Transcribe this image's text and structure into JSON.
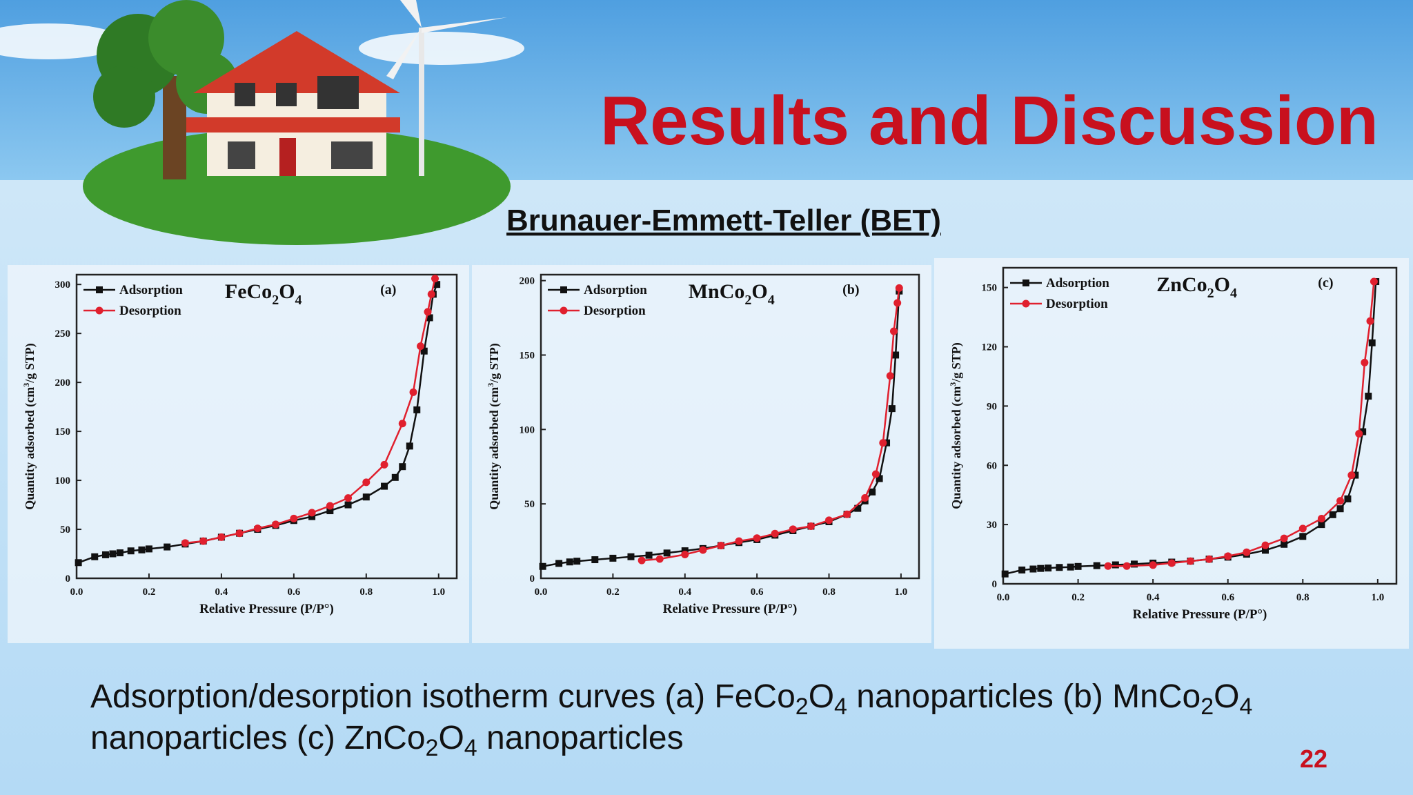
{
  "slide": {
    "title": "Results and Discussion",
    "subtitle": "Brunauer-Emmett-Teller (BET)",
    "page_number": "22"
  },
  "caption": [
    [
      [
        "Adsorption/desorption isotherm curves (a) FeCo",
        "2"
      ],
      [
        "O",
        "4"
      ],
      [
        " nanoparticles (b) MnCo",
        "2"
      ],
      [
        "O",
        "4"
      ]
    ],
    [
      [
        "nanoparticles (c) ZnCo",
        "2"
      ],
      [
        "O",
        "4"
      ],
      [
        " nanoparticles"
      ]
    ]
  ],
  "chart_data": [
    {
      "type": "line",
      "formula": [
        [
          "FeCo",
          "2"
        ],
        [
          "O",
          "4"
        ]
      ],
      "panel": "(a)",
      "x_label": "Relative Pressure (P/P°)",
      "y_label": [
        "Quantity adsorbed (cm",
        "3",
        "/g STP)"
      ],
      "xlim": [
        0,
        1.05
      ],
      "ylim": [
        0,
        310
      ],
      "xticks": [
        {
          "value": 0,
          "label": "0.0"
        },
        {
          "value": 0.2,
          "label": "0.2"
        },
        {
          "value": 0.4,
          "label": "0.4"
        },
        {
          "value": 0.6,
          "label": "0.6"
        },
        {
          "value": 0.8,
          "label": "0.8"
        },
        {
          "value": 1,
          "label": "1.0"
        }
      ],
      "yticks": [
        0,
        50,
        100,
        150,
        200,
        250,
        300
      ],
      "series": [
        {
          "name": "Adsorption",
          "color": "#111111",
          "marker": "square",
          "x": [
            0.005,
            0.05,
            0.08,
            0.1,
            0.12,
            0.15,
            0.18,
            0.2,
            0.25,
            0.3,
            0.35,
            0.4,
            0.45,
            0.5,
            0.55,
            0.6,
            0.65,
            0.7,
            0.75,
            0.8,
            0.85,
            0.88,
            0.9,
            0.92,
            0.94,
            0.96,
            0.975,
            0.985,
            0.995
          ],
          "values": [
            16,
            22,
            24,
            25,
            26,
            28,
            29,
            30,
            32,
            35,
            38,
            42,
            46,
            50,
            54,
            59,
            63,
            69,
            75,
            83,
            94,
            103,
            114,
            135,
            172,
            232,
            266,
            290,
            300
          ]
        },
        {
          "name": "Desorption",
          "color": "#e0202e",
          "marker": "circle",
          "x": [
            0.3,
            0.35,
            0.4,
            0.45,
            0.5,
            0.55,
            0.6,
            0.65,
            0.7,
            0.75,
            0.8,
            0.85,
            0.9,
            0.93,
            0.95,
            0.97,
            0.98,
            0.99
          ],
          "values": [
            36,
            38,
            42,
            46,
            51,
            55,
            61,
            67,
            74,
            82,
            98,
            116,
            158,
            190,
            237,
            272,
            290,
            306
          ]
        }
      ]
    },
    {
      "type": "line",
      "formula": [
        [
          "MnCo",
          "2"
        ],
        [
          "O",
          "4"
        ]
      ],
      "panel": "(b)",
      "x_label": "Relative Pressure (P/P°)",
      "y_label": [
        "Quantity adsorbed (cm",
        "3",
        "/g STP)"
      ],
      "xlim": [
        0,
        1.05
      ],
      "ylim": [
        0,
        204
      ],
      "xticks": [
        {
          "value": 0,
          "label": "0.0"
        },
        {
          "value": 0.2,
          "label": "0.2"
        },
        {
          "value": 0.4,
          "label": "0.4"
        },
        {
          "value": 0.6,
          "label": "0.6"
        },
        {
          "value": 0.8,
          "label": "0.8"
        },
        {
          "value": 1,
          "label": "1.0"
        }
      ],
      "yticks": [
        0,
        50,
        100,
        150,
        200
      ],
      "series": [
        {
          "name": "Adsorption",
          "color": "#111111",
          "marker": "square",
          "x": [
            0.005,
            0.05,
            0.08,
            0.1,
            0.15,
            0.2,
            0.25,
            0.3,
            0.35,
            0.4,
            0.45,
            0.5,
            0.55,
            0.6,
            0.65,
            0.7,
            0.75,
            0.8,
            0.85,
            0.88,
            0.9,
            0.92,
            0.94,
            0.96,
            0.975,
            0.985,
            0.995
          ],
          "values": [
            8,
            10,
            11,
            11.5,
            12.5,
            13.5,
            14.5,
            15.5,
            17,
            18.5,
            20,
            22,
            24,
            26,
            29,
            32,
            35,
            38,
            43,
            47,
            52,
            58,
            67,
            91,
            114,
            150,
            193
          ]
        },
        {
          "name": "Desorption",
          "color": "#e0202e",
          "marker": "circle",
          "x": [
            0.28,
            0.33,
            0.4,
            0.45,
            0.5,
            0.55,
            0.6,
            0.65,
            0.7,
            0.75,
            0.8,
            0.85,
            0.9,
            0.93,
            0.95,
            0.97,
            0.98,
            0.99,
            0.995
          ],
          "values": [
            12,
            13,
            16,
            19,
            22,
            25,
            27,
            30,
            33,
            35,
            39,
            43,
            54,
            70,
            91,
            136,
            166,
            185,
            195
          ]
        }
      ]
    },
    {
      "type": "line",
      "formula": [
        [
          "ZnCo",
          "2"
        ],
        [
          "O",
          "4"
        ]
      ],
      "panel": "(c)",
      "x_label": "Relative Pressure (P/P°)",
      "y_label": [
        "Quantity adsorbed (cm",
        "3",
        "/g STP)"
      ],
      "xlim": [
        0,
        1.05
      ],
      "ylim": [
        0,
        160
      ],
      "xticks": [
        {
          "value": 0,
          "label": "0.0"
        },
        {
          "value": 0.2,
          "label": "0.2"
        },
        {
          "value": 0.4,
          "label": "0.4"
        },
        {
          "value": 0.6,
          "label": "0.6"
        },
        {
          "value": 0.8,
          "label": "0.8"
        },
        {
          "value": 1,
          "label": "1.0"
        }
      ],
      "yticks": [
        0,
        30,
        60,
        90,
        120,
        150
      ],
      "series": [
        {
          "name": "Adsorption",
          "color": "#111111",
          "marker": "square",
          "x": [
            0.005,
            0.05,
            0.08,
            0.1,
            0.12,
            0.15,
            0.18,
            0.2,
            0.25,
            0.3,
            0.35,
            0.4,
            0.45,
            0.5,
            0.55,
            0.6,
            0.65,
            0.7,
            0.75,
            0.8,
            0.85,
            0.88,
            0.9,
            0.92,
            0.94,
            0.96,
            0.975,
            0.985,
            0.995
          ],
          "values": [
            5,
            7,
            7.5,
            7.8,
            8,
            8.3,
            8.5,
            8.8,
            9.2,
            9.6,
            10,
            10.5,
            11,
            11.5,
            12.5,
            13.5,
            15,
            17,
            20,
            24,
            30,
            35,
            38,
            43,
            55,
            77,
            95,
            122,
            153
          ]
        },
        {
          "name": "Desorption",
          "color": "#e0202e",
          "marker": "circle",
          "x": [
            0.28,
            0.33,
            0.4,
            0.45,
            0.5,
            0.55,
            0.6,
            0.65,
            0.7,
            0.75,
            0.8,
            0.85,
            0.9,
            0.93,
            0.95,
            0.965,
            0.98,
            0.99
          ],
          "values": [
            9,
            9,
            9.5,
            10.5,
            11.5,
            12.5,
            14,
            16,
            19.5,
            23,
            28,
            33,
            42,
            55,
            76,
            112,
            133,
            153
          ]
        }
      ]
    }
  ]
}
